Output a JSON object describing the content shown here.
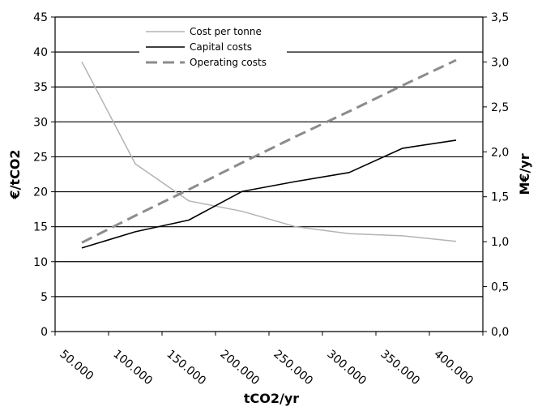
{
  "chart_data": {
    "type": "line",
    "xlabel": "tCO2/yr",
    "ylabel_left": "€/tCO2",
    "ylabel_right": "M€/yr",
    "x_categories": [
      "50.000",
      "100.000",
      "150.000",
      "200.000",
      "250.000",
      "300.000",
      "350.000",
      "400.000"
    ],
    "y_left_ticks": [
      "0",
      "5",
      "10",
      "15",
      "20",
      "25",
      "30",
      "35",
      "40",
      "45"
    ],
    "y_left_range": [
      0,
      45
    ],
    "y_right_ticks": [
      "0,0",
      "0,5",
      "1,0",
      "1,5",
      "2,0",
      "2,5",
      "3,0",
      "3,5"
    ],
    "y_right_range": [
      0,
      3.5
    ],
    "grid": "horizontal",
    "legend_position": "top",
    "series": [
      {
        "name": "Cost per tonne",
        "axis": "left",
        "color": "#b3b3b3",
        "style": "solid",
        "values": [
          38.6,
          24.0,
          18.7,
          17.2,
          15.0,
          14.0,
          13.7,
          12.9
        ]
      },
      {
        "name": "Capital costs",
        "axis": "right",
        "color": "#000000",
        "style": "solid",
        "values": [
          0.93,
          1.11,
          1.24,
          1.56,
          1.67,
          1.77,
          2.04,
          2.13
        ]
      },
      {
        "name": "Operating costs",
        "axis": "right",
        "color": "#8c8c8c",
        "style": "dashed",
        "values": [
          0.99,
          1.29,
          1.58,
          1.88,
          2.17,
          2.45,
          2.74,
          3.02
        ]
      }
    ]
  }
}
